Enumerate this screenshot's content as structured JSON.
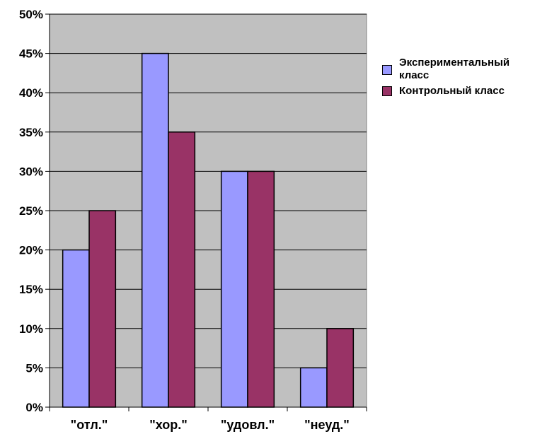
{
  "chart_data": {
    "type": "bar",
    "title": "",
    "xlabel": "",
    "ylabel": "",
    "categories": [
      "\"отл.\"",
      "\"хор.\"",
      "\"удовл.\"",
      "\"неуд.\""
    ],
    "series": [
      {
        "name": "Экспериментальный класс",
        "values": [
          20,
          45,
          30,
          5
        ],
        "color": "#9999ff"
      },
      {
        "name": "Контрольный класс",
        "values": [
          25,
          35,
          30,
          10
        ],
        "color": "#993366"
      }
    ],
    "ylim": [
      0,
      50
    ],
    "yticks": [
      "0%",
      "5%",
      "10%",
      "15%",
      "20%",
      "25%",
      "30%",
      "35%",
      "40%",
      "45%",
      "50%"
    ],
    "grid": true,
    "legend_position": "right",
    "plot_background": "#c0c0c0"
  },
  "legend": {
    "items": [
      {
        "label_line1": "Экспериментальный",
        "label_line2": "класс"
      },
      {
        "label_line1": "Контрольный класс"
      }
    ]
  }
}
